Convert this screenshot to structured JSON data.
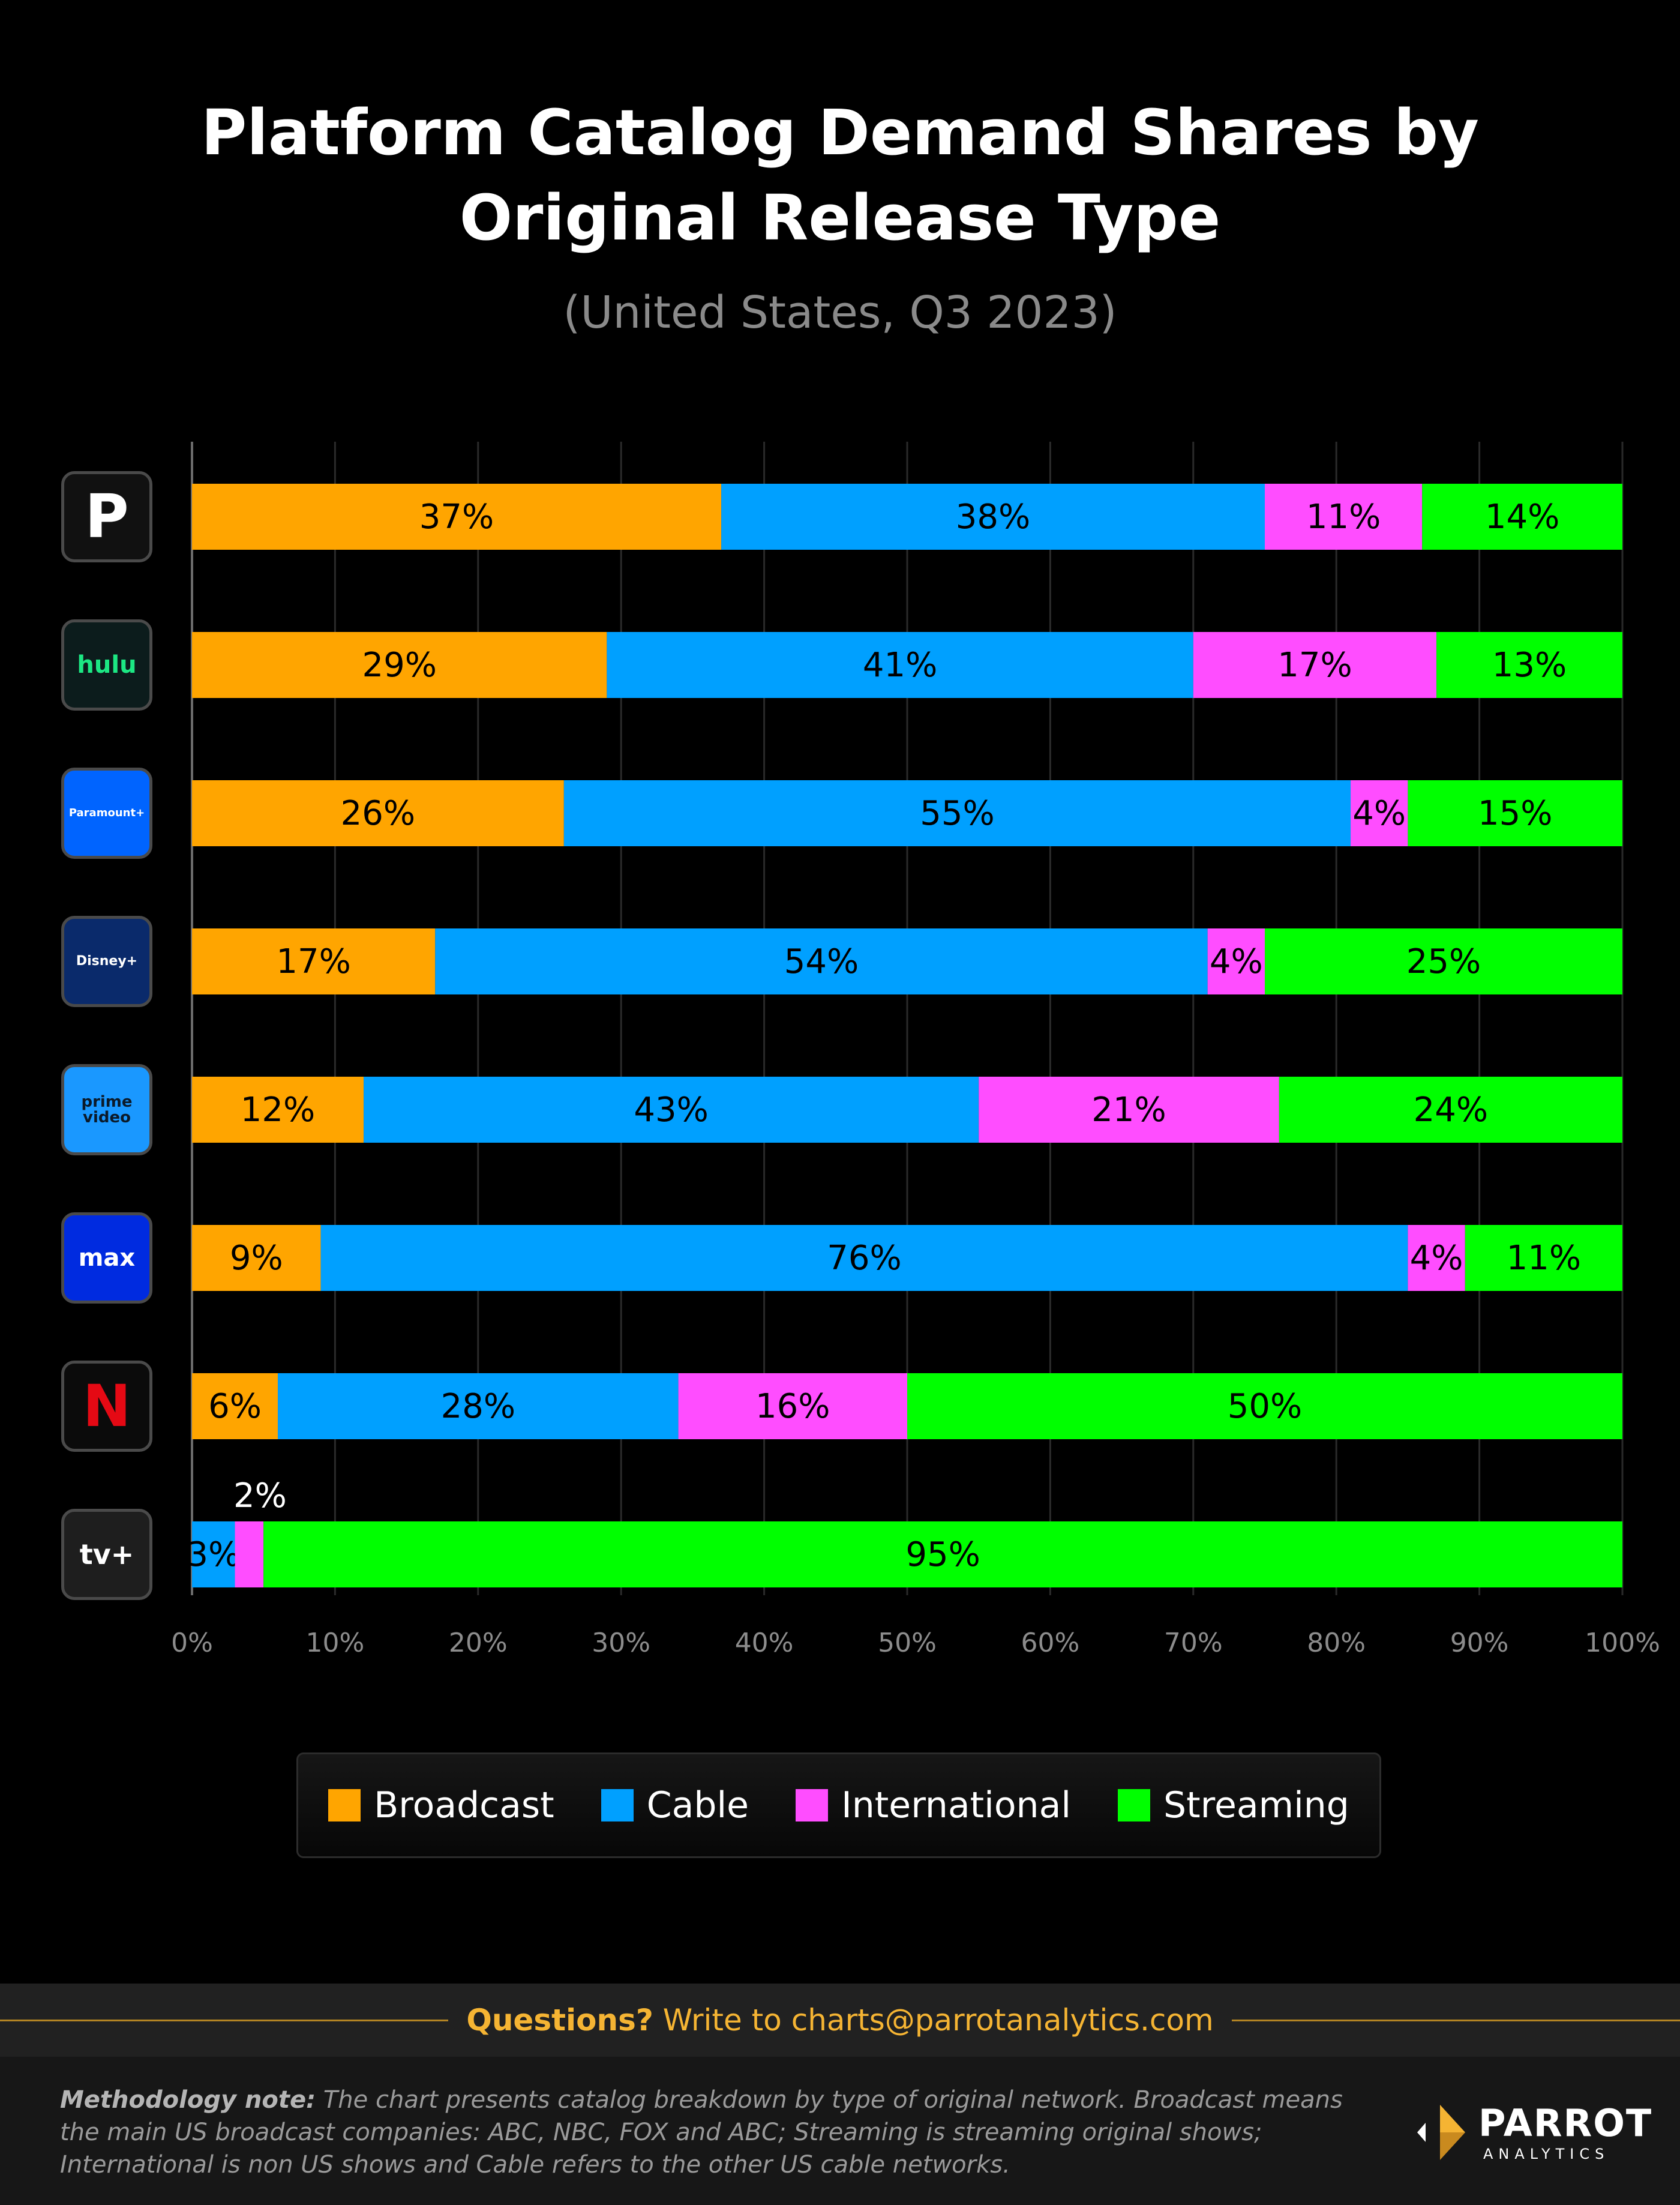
{
  "header": {
    "title_line1": "Platform Catalog Demand Shares by",
    "title_line2": "Original Release Type",
    "subtitle": "(United States, Q3 2023)"
  },
  "colors": {
    "Broadcast": "#FFA500",
    "Cable": "#00A0FF",
    "International": "#FF4DFF",
    "Streaming": "#00FF00"
  },
  "platforms": [
    {
      "name": "Peacock",
      "logo_icon": "peacock-logo-icon",
      "logo_text": "P"
    },
    {
      "name": "Hulu",
      "logo_icon": "hulu-logo-icon",
      "logo_text": "hulu"
    },
    {
      "name": "Paramount+",
      "logo_icon": "paramount-plus-logo-icon",
      "logo_text": "Paramount+"
    },
    {
      "name": "Disney+",
      "logo_icon": "disney-plus-logo-icon",
      "logo_text": "Disney+"
    },
    {
      "name": "Prime Video",
      "logo_icon": "prime-video-logo-icon",
      "logo_text": "prime video"
    },
    {
      "name": "Max",
      "logo_icon": "max-logo-icon",
      "logo_text": "max"
    },
    {
      "name": "Netflix",
      "logo_icon": "netflix-logo-icon",
      "logo_text": "N"
    },
    {
      "name": "Apple TV+",
      "logo_icon": "apple-tv-plus-logo-icon",
      "logo_text": "tv+"
    }
  ],
  "chart_data": {
    "type": "bar",
    "orientation": "horizontal",
    "stacked": true,
    "title": "Platform Catalog Demand Shares by Original Release Type",
    "subtitle": "(United States, Q3 2023)",
    "categories": [
      "Peacock",
      "Hulu",
      "Paramount+",
      "Disney+",
      "Prime Video",
      "Max",
      "Netflix",
      "Apple TV+"
    ],
    "series": [
      {
        "name": "Broadcast",
        "values": [
          37,
          29,
          26,
          17,
          12,
          9,
          6,
          0
        ]
      },
      {
        "name": "Cable",
        "values": [
          38,
          41,
          55,
          54,
          43,
          76,
          28,
          3
        ]
      },
      {
        "name": "International",
        "values": [
          11,
          17,
          4,
          4,
          21,
          4,
          16,
          2
        ]
      },
      {
        "name": "Streaming",
        "values": [
          14,
          13,
          15,
          25,
          24,
          11,
          50,
          95
        ]
      }
    ],
    "segment_labels": [
      [
        "37%",
        "38%",
        "11%",
        "14%"
      ],
      [
        "29%",
        "41%",
        "17%",
        "13%"
      ],
      [
        "26%",
        "55%",
        "4%",
        "15%"
      ],
      [
        "17%",
        "54%",
        "4%",
        "25%"
      ],
      [
        "12%",
        "43%",
        "21%",
        "24%"
      ],
      [
        "9%",
        "76%",
        "4%",
        "11%"
      ],
      [
        "6%",
        "28%",
        "16%",
        "50%"
      ],
      [
        "",
        "3%",
        "2%",
        "95%"
      ]
    ],
    "xlim": [
      0,
      100
    ],
    "x_ticks": [
      "0%",
      "10%",
      "20%",
      "30%",
      "40%",
      "50%",
      "60%",
      "70%",
      "80%",
      "90%",
      "100%"
    ],
    "grid": true,
    "legend": [
      "Broadcast",
      "Cable",
      "International",
      "Streaming"
    ],
    "legend_position": "bottom"
  },
  "legend": {
    "items": [
      {
        "label": "Broadcast",
        "color": "#FFA500"
      },
      {
        "label": "Cable",
        "color": "#00A0FF"
      },
      {
        "label": "International",
        "color": "#FF4DFF"
      },
      {
        "label": "Streaming",
        "color": "#00FF00"
      }
    ]
  },
  "contact": {
    "label": "Questions?",
    "text": "Write to charts@parrotanalytics.com"
  },
  "footer": {
    "note_label": "Methodology note:",
    "note_text": "The chart presents catalog breakdown by type of original network. Broadcast means the main US broadcast companies: ABC, NBC, FOX and ABC; Streaming is streaming original shows; International is non US shows and Cable refers to the other US cable networks.",
    "brand_name": "PARROT",
    "brand_sub": "ANALYTICS"
  }
}
